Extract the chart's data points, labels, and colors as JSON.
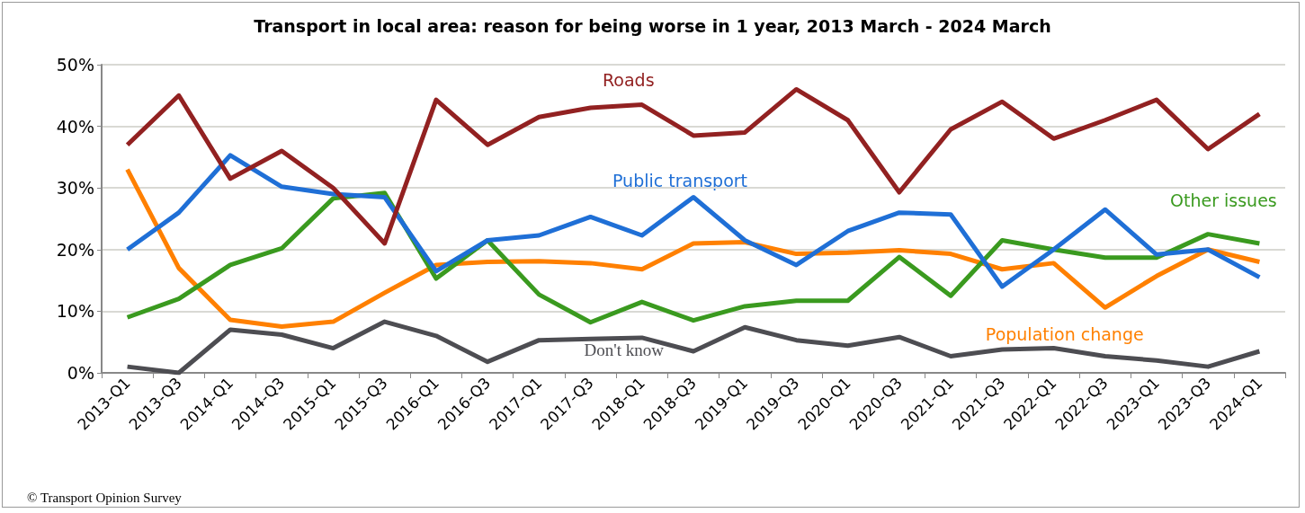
{
  "chart_data": {
    "type": "line",
    "title": "Transport in local area: reason for being worse in 1 year, 2013 March - 2024 March",
    "categories": [
      "2013-Q1",
      "2013-Q3",
      "2014-Q1",
      "2014-Q3",
      "2015-Q1",
      "2015-Q3",
      "2016-Q1",
      "2016-Q3",
      "2017-Q1",
      "2017-Q3",
      "2018-Q1",
      "2018-Q3",
      "2019-Q1",
      "2019-Q3",
      "2020-Q1",
      "2020-Q3",
      "2021-Q1",
      "2021-Q3",
      "2022-Q1",
      "2022-Q3",
      "2023-Q1",
      "2023-Q3",
      "2024-Q1"
    ],
    "series": [
      {
        "name": "Roads",
        "color": "#922121",
        "values": [
          37,
          45,
          31.5,
          36,
          30,
          21,
          44.3,
          37,
          41.5,
          43,
          43.5,
          38.5,
          39,
          46,
          41,
          29.3,
          39.5,
          44,
          38,
          41,
          44.3,
          36.3,
          42
        ]
      },
      {
        "name": "Public transport",
        "color": "#1f6fd6",
        "values": [
          20,
          26,
          35.3,
          30.2,
          29,
          28.5,
          16.5,
          21.5,
          22.3,
          25.3,
          22.3,
          28.5,
          21.5,
          17.5,
          23,
          26,
          25.7,
          14,
          20,
          26.5,
          19.2,
          20,
          15.5
        ]
      },
      {
        "name": "Other issues",
        "color": "#3a9a1f",
        "values": [
          9,
          12,
          17.5,
          20.2,
          28.3,
          29.2,
          15.3,
          21.5,
          12.7,
          8.2,
          11.5,
          8.5,
          10.8,
          11.7,
          11.7,
          18.8,
          12.5,
          21.5,
          20,
          18.7,
          18.7,
          22.5,
          21
        ]
      },
      {
        "name": "Population change",
        "color": "#ff8000",
        "values": [
          33,
          17,
          8.6,
          7.5,
          8.3,
          13,
          17.5,
          18,
          18.1,
          17.8,
          16.8,
          21,
          21.2,
          19.3,
          19.5,
          19.9,
          19.3,
          16.8,
          17.8,
          10.6,
          15.7,
          20,
          18
        ]
      },
      {
        "name": "Don't know",
        "color": "#4d4d52",
        "values": [
          1,
          0,
          7,
          6.2,
          4,
          8.3,
          6,
          1.8,
          5.3,
          5.5,
          5.7,
          3.5,
          7.4,
          5.3,
          4.4,
          5.8,
          2.7,
          3.8,
          4,
          2.7,
          2,
          1,
          3.5
        ]
      }
    ],
    "ylim": [
      0,
      50
    ],
    "yticks": [
      {
        "value": 0,
        "label": "0%"
      },
      {
        "value": 10,
        "label": "10%"
      },
      {
        "value": 20,
        "label": "20%"
      },
      {
        "value": 30,
        "label": "30%"
      },
      {
        "value": 40,
        "label": "40%"
      },
      {
        "value": 50,
        "label": "50%"
      }
    ],
    "grid": "y",
    "legend": false,
    "marker": "none",
    "line_style": "solid",
    "annotations": [
      "© Transport Opinion Survey"
    ]
  }
}
